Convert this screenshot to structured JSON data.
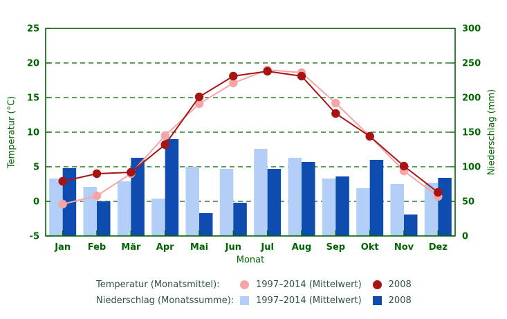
{
  "chart_data": {
    "type": "bar-line-combo",
    "xlabel": "Monat",
    "ylabel_left": "Temperatur (°C)",
    "ylabel_right": "Niederschlag (mm)",
    "categories": [
      "Jan",
      "Feb",
      "Mär",
      "Apr",
      "Mai",
      "Jun",
      "Jul",
      "Aug",
      "Sep",
      "Okt",
      "Nov",
      "Dez"
    ],
    "axes": {
      "temp": {
        "min": -5,
        "max": 25,
        "ticks": [
          -5,
          0,
          5,
          10,
          15,
          20,
          25
        ],
        "grid": [
          0,
          5,
          10,
          15,
          20
        ]
      },
      "precip": {
        "min": 0,
        "max": 300,
        "ticks": [
          0,
          50,
          100,
          150,
          200,
          250,
          300
        ]
      }
    },
    "grid_style": "horizontal dashed dark-green lines",
    "legend_position": "below plot",
    "series": [
      {
        "name": "Temperatur 1997–2014 (Mittelwert)",
        "type": "line",
        "axis": "temp",
        "color": "#f5a5a5",
        "values": [
          -0.4,
          0.8,
          4.0,
          9.5,
          14.1,
          17.1,
          19.0,
          18.6,
          14.2,
          9.4,
          4.4,
          0.7
        ]
      },
      {
        "name": "Temperatur 2008",
        "type": "line",
        "axis": "temp",
        "color": "#a81414",
        "values": [
          2.9,
          4.0,
          4.2,
          8.2,
          15.1,
          18.1,
          18.8,
          18.1,
          12.7,
          9.4,
          5.1,
          1.3
        ]
      },
      {
        "name": "Niederschlag 1997–2014 (Mittelwert)",
        "type": "bar",
        "axis": "precip",
        "color": "#b4cff7",
        "values": [
          83,
          71,
          79,
          54,
          100,
          97,
          126,
          113,
          83,
          69,
          75,
          77
        ]
      },
      {
        "name": "Niederschlag 2008",
        "type": "bar",
        "axis": "precip",
        "color": "#0e4cb0",
        "values": [
          98,
          50,
          113,
          140,
          33,
          48,
          97,
          107,
          86,
          110,
          31,
          84
        ]
      }
    ]
  },
  "legend": {
    "temp": {
      "title": "Temperatur (Monatsmittel):",
      "mean": "1997–2014 (Mittelwert)",
      "year": "2008"
    },
    "precip": {
      "title": "Niederschlag (Monatssumme):",
      "mean": "1997–2014 (Mittelwert)",
      "year": "2008"
    }
  },
  "colors": {
    "temp_mean": "#f5a5a5",
    "temp_2008": "#a81414",
    "precip_mean": "#b4cff7",
    "precip_2008": "#0e4cb0",
    "axis": "#006400",
    "legend_text": "#2f4f4f"
  }
}
